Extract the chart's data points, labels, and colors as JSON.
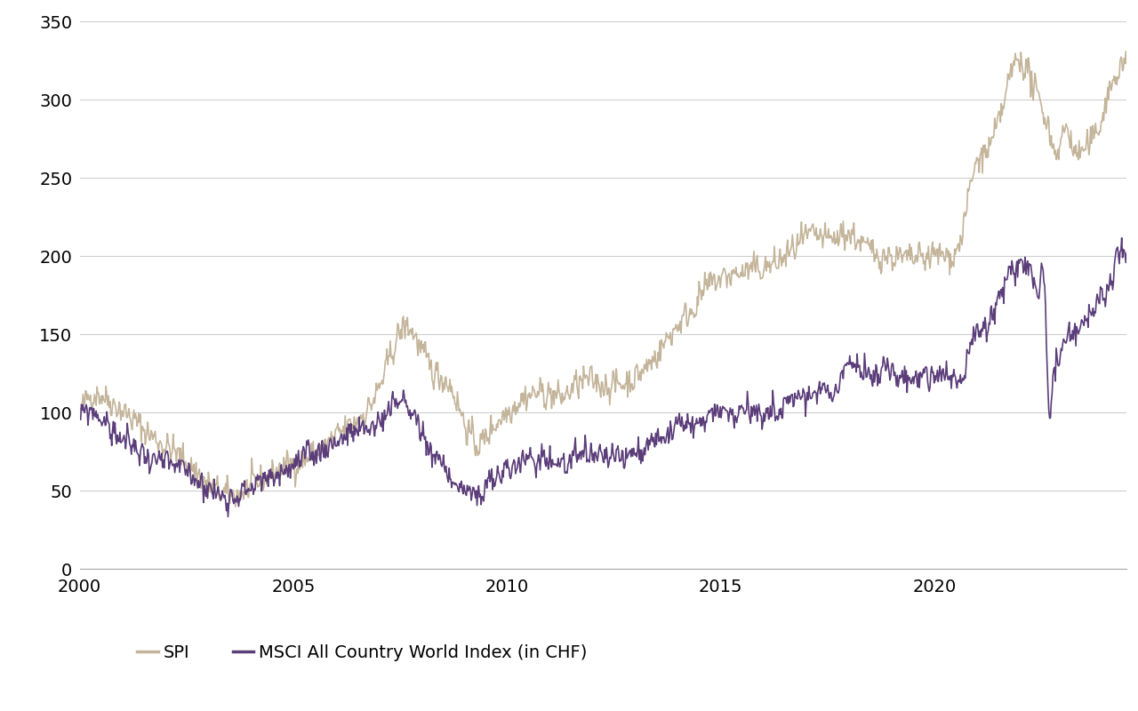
{
  "spi_color": "#c4b49a",
  "msci_color": "#5b3d7a",
  "background_color": "#ffffff",
  "ylim": [
    0,
    350
  ],
  "yticks": [
    0,
    50,
    100,
    150,
    200,
    250,
    300,
    350
  ],
  "tick_fontsize": 14,
  "legend_fontsize": 14,
  "line_width": 1.2,
  "legend_spi": "SPI",
  "legend_msci": "MSCI All Country World Index (in CHF)",
  "grid_color": "#d0cece",
  "grid_linewidth": 0.8,
  "spine_color": "#aaaaaa",
  "spi_key_points": [
    [
      0,
      100
    ],
    [
      4,
      112
    ],
    [
      8,
      108
    ],
    [
      15,
      95
    ],
    [
      20,
      85
    ],
    [
      30,
      68
    ],
    [
      40,
      48
    ],
    [
      48,
      52
    ],
    [
      55,
      62
    ],
    [
      65,
      72
    ],
    [
      75,
      90
    ],
    [
      85,
      120
    ],
    [
      92,
      155
    ],
    [
      96,
      140
    ],
    [
      100,
      125
    ],
    [
      104,
      118
    ],
    [
      108,
      95
    ],
    [
      112,
      80
    ],
    [
      116,
      90
    ],
    [
      120,
      100
    ],
    [
      124,
      108
    ],
    [
      128,
      112
    ],
    [
      132,
      112
    ],
    [
      136,
      110
    ],
    [
      140,
      118
    ],
    [
      144,
      120
    ],
    [
      148,
      118
    ],
    [
      152,
      118
    ],
    [
      156,
      122
    ],
    [
      160,
      130
    ],
    [
      164,
      142
    ],
    [
      168,
      155
    ],
    [
      172,
      165
    ],
    [
      176,
      178
    ],
    [
      180,
      185
    ],
    [
      184,
      188
    ],
    [
      188,
      190
    ],
    [
      192,
      192
    ],
    [
      196,
      195
    ],
    [
      200,
      202
    ],
    [
      204,
      210
    ],
    [
      208,
      212
    ],
    [
      212,
      210
    ],
    [
      216,
      215
    ],
    [
      220,
      208
    ],
    [
      224,
      202
    ],
    [
      228,
      200
    ],
    [
      232,
      198
    ],
    [
      236,
      198
    ],
    [
      240,
      200
    ],
    [
      244,
      200
    ],
    [
      248,
      210
    ],
    [
      252,
      255
    ],
    [
      256,
      268
    ],
    [
      260,
      295
    ],
    [
      264,
      325
    ],
    [
      268,
      312
    ],
    [
      270,
      300
    ],
    [
      272,
      290
    ],
    [
      274,
      272
    ],
    [
      276,
      270
    ],
    [
      278,
      282
    ],
    [
      280,
      268
    ],
    [
      282,
      266
    ],
    [
      284,
      270
    ],
    [
      286,
      276
    ],
    [
      288,
      290
    ],
    [
      290,
      305
    ],
    [
      292,
      315
    ],
    [
      294,
      322
    ],
    [
      296,
      318
    ],
    [
      298,
      322
    ]
  ],
  "msci_key_points": [
    [
      0,
      96
    ],
    [
      4,
      100
    ],
    [
      8,
      90
    ],
    [
      15,
      78
    ],
    [
      20,
      70
    ],
    [
      30,
      62
    ],
    [
      40,
      47
    ],
    [
      48,
      52
    ],
    [
      55,
      60
    ],
    [
      65,
      72
    ],
    [
      75,
      85
    ],
    [
      85,
      96
    ],
    [
      92,
      105
    ],
    [
      96,
      88
    ],
    [
      100,
      72
    ],
    [
      104,
      60
    ],
    [
      108,
      50
    ],
    [
      112,
      47
    ],
    [
      116,
      55
    ],
    [
      120,
      63
    ],
    [
      124,
      68
    ],
    [
      128,
      70
    ],
    [
      132,
      70
    ],
    [
      136,
      68
    ],
    [
      140,
      70
    ],
    [
      144,
      72
    ],
    [
      148,
      72
    ],
    [
      152,
      70
    ],
    [
      156,
      74
    ],
    [
      160,
      80
    ],
    [
      164,
      86
    ],
    [
      168,
      88
    ],
    [
      172,
      92
    ],
    [
      176,
      95
    ],
    [
      180,
      98
    ],
    [
      184,
      100
    ],
    [
      188,
      100
    ],
    [
      192,
      100
    ],
    [
      196,
      100
    ],
    [
      200,
      108
    ],
    [
      204,
      112
    ],
    [
      208,
      115
    ],
    [
      212,
      112
    ],
    [
      216,
      130
    ],
    [
      220,
      126
    ],
    [
      224,
      122
    ],
    [
      228,
      125
    ],
    [
      232,
      122
    ],
    [
      236,
      122
    ],
    [
      240,
      124
    ],
    [
      244,
      124
    ],
    [
      248,
      122
    ],
    [
      252,
      148
    ],
    [
      256,
      158
    ],
    [
      260,
      178
    ],
    [
      264,
      192
    ],
    [
      268,
      186
    ],
    [
      270,
      178
    ],
    [
      272,
      170
    ],
    [
      273,
      100
    ],
    [
      274,
      118
    ],
    [
      276,
      135
    ],
    [
      278,
      148
    ],
    [
      280,
      150
    ],
    [
      282,
      155
    ],
    [
      284,
      162
    ],
    [
      286,
      168
    ],
    [
      288,
      172
    ],
    [
      290,
      178
    ],
    [
      292,
      196
    ],
    [
      294,
      205
    ],
    [
      296,
      200
    ],
    [
      298,
      207
    ]
  ]
}
